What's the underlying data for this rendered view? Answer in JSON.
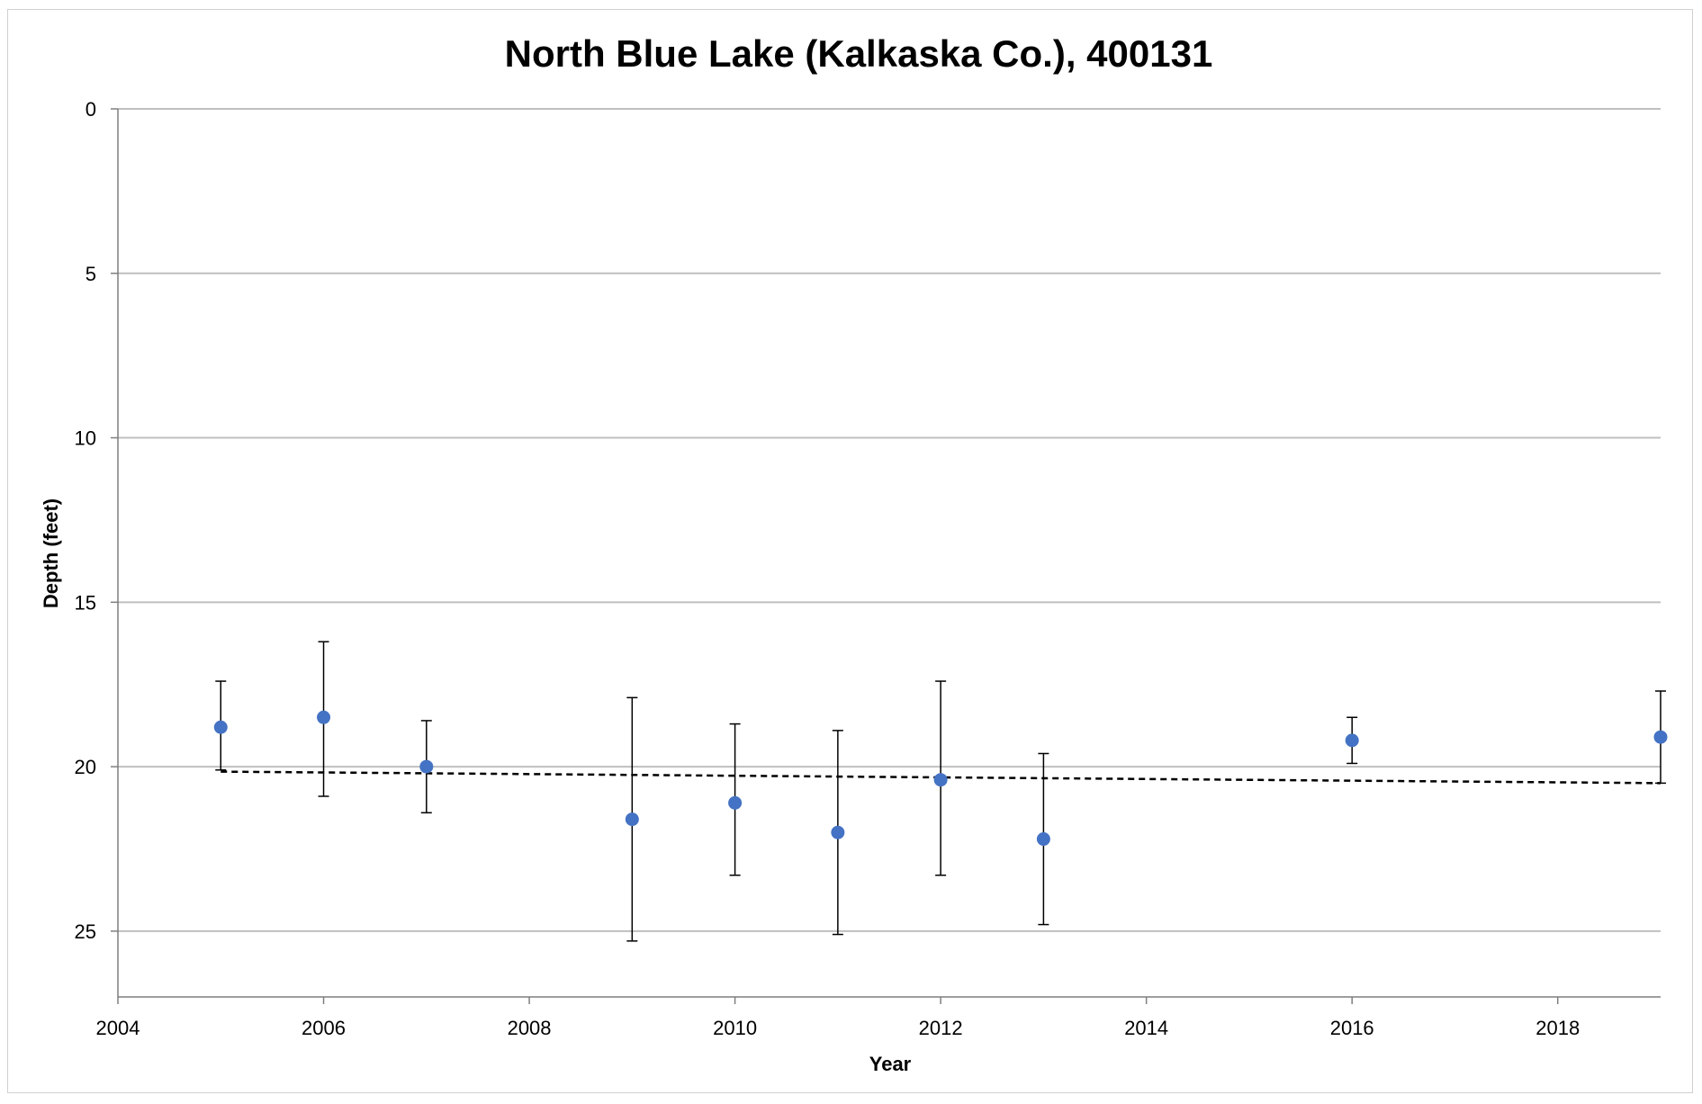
{
  "chart_data": {
    "type": "scatter",
    "title": "North Blue Lake (Kalkaska Co.), 400131",
    "xlabel": "Year",
    "ylabel": "Depth (feet)",
    "xlim": [
      2004,
      2019
    ],
    "ylim": [
      0,
      27
    ],
    "y_inverted": true,
    "x_ticks": [
      "2004",
      "2006",
      "2008",
      "2010",
      "2012",
      "2014",
      "2016",
      "2018"
    ],
    "y_ticks": [
      "0",
      "5",
      "10",
      "15",
      "20",
      "25"
    ],
    "grid": "horizontal",
    "legend": "none",
    "point_color": "#4472C4",
    "series": [
      {
        "points": [
          {
            "x": 2005,
            "y": 18.8,
            "err_low": 17.4,
            "err_high": 20.1
          },
          {
            "x": 2006,
            "y": 18.5,
            "err_low": 16.2,
            "err_high": 20.9
          },
          {
            "x": 2007,
            "y": 20.0,
            "err_low": 18.6,
            "err_high": 21.4
          },
          {
            "x": 2009,
            "y": 21.6,
            "err_low": 17.9,
            "err_high": 25.3
          },
          {
            "x": 2010,
            "y": 21.1,
            "err_low": 18.7,
            "err_high": 23.3
          },
          {
            "x": 2011,
            "y": 22.0,
            "err_low": 18.9,
            "err_high": 25.1
          },
          {
            "x": 2012,
            "y": 20.4,
            "err_low": 17.4,
            "err_high": 23.3
          },
          {
            "x": 2013,
            "y": 22.2,
            "err_low": 19.6,
            "err_high": 24.8
          },
          {
            "x": 2016,
            "y": 19.2,
            "err_low": 18.5,
            "err_high": 19.9
          },
          {
            "x": 2019,
            "y": 19.1,
            "err_low": 17.7,
            "err_high": 20.5
          }
        ]
      }
    ],
    "trendline": {
      "style": "dashed",
      "color": "#000000",
      "x": [
        2005,
        2019
      ],
      "y": [
        20.15,
        20.5
      ]
    }
  }
}
